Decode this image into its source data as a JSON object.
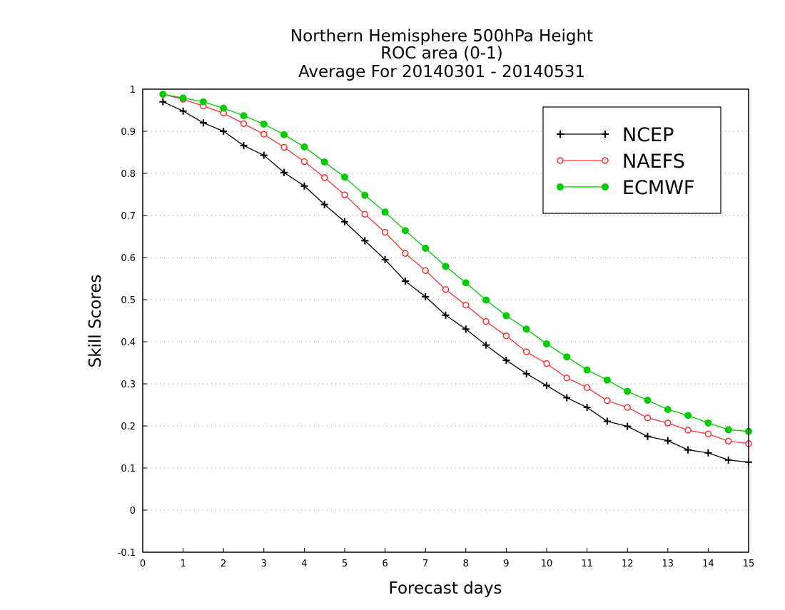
{
  "chart_data": {
    "type": "line",
    "title_lines": [
      "Northern Hemisphere 500hPa Height",
      "ROC area (0-1)",
      "Average For 20140301 - 20140531"
    ],
    "xlabel": "Forecast days",
    "ylabel": "Skill Scores",
    "xlim": [
      0,
      15
    ],
    "ylim": [
      -0.1,
      1
    ],
    "xticks": [
      "0",
      "1",
      "2",
      "3",
      "4",
      "5",
      "6",
      "7",
      "8",
      "9",
      "10",
      "11",
      "12",
      "13",
      "14",
      "15"
    ],
    "yticks": [
      "-0.1",
      "0",
      "0.1",
      "0.2",
      "0.3",
      "0.4",
      "0.5",
      "0.6",
      "0.7",
      "0.8",
      "0.9",
      "1"
    ],
    "grid": "horizontal dotted",
    "legend_position": "top-right",
    "x": [
      0.5,
      1,
      1.5,
      2,
      2.5,
      3,
      3.5,
      4,
      4.5,
      5,
      5.5,
      6,
      6.5,
      7,
      7.5,
      8,
      8.5,
      9,
      9.5,
      10,
      10.5,
      11,
      11.5,
      12,
      12.5,
      13,
      13.5,
      14,
      14.5,
      15
    ],
    "series": [
      {
        "name": "NCEP",
        "color": "#000000",
        "marker": "plus",
        "values": [
          0.97,
          0.948,
          0.92,
          0.9,
          0.866,
          0.843,
          0.802,
          0.77,
          0.726,
          0.685,
          0.64,
          0.595,
          0.544,
          0.507,
          0.463,
          0.43,
          0.392,
          0.356,
          0.324,
          0.296,
          0.267,
          0.244,
          0.211,
          0.199,
          0.175,
          0.165,
          0.143,
          0.136,
          0.119,
          0.114
        ]
      },
      {
        "name": "NAEFS",
        "color": "#ff3030",
        "marker": "open-circle",
        "values": [
          0.988,
          0.976,
          0.96,
          0.943,
          0.918,
          0.893,
          0.862,
          0.828,
          0.79,
          0.749,
          0.703,
          0.66,
          0.61,
          0.569,
          0.524,
          0.487,
          0.448,
          0.414,
          0.376,
          0.348,
          0.314,
          0.291,
          0.26,
          0.244,
          0.219,
          0.207,
          0.19,
          0.181,
          0.164,
          0.158
        ]
      },
      {
        "name": "ECMWF",
        "color": "#00cc00",
        "marker": "filled-circle",
        "values": [
          0.988,
          0.979,
          0.97,
          0.955,
          0.937,
          0.917,
          0.892,
          0.863,
          0.827,
          0.791,
          0.748,
          0.708,
          0.664,
          0.622,
          0.579,
          0.54,
          0.499,
          0.462,
          0.43,
          0.395,
          0.364,
          0.333,
          0.309,
          0.282,
          0.261,
          0.239,
          0.225,
          0.207,
          0.191,
          0.187
        ]
      }
    ]
  }
}
